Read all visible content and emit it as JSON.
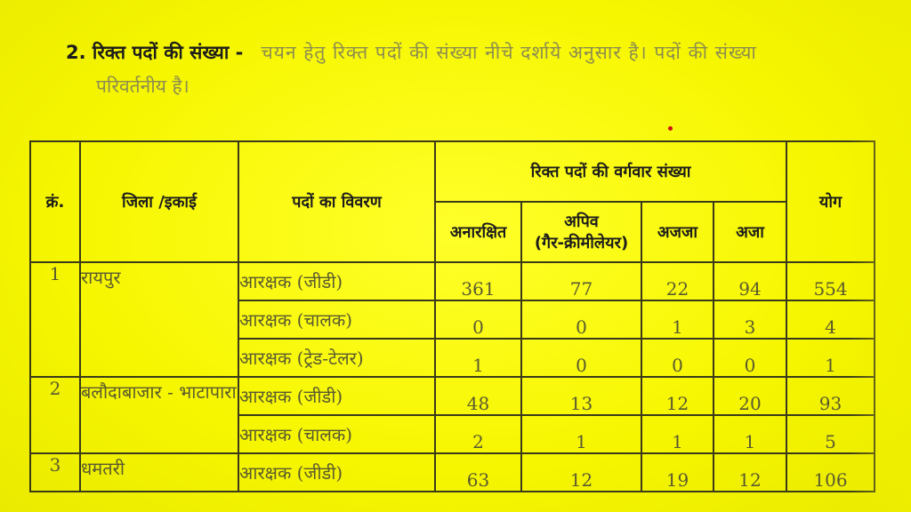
{
  "heading": {
    "number_title": "2. रिक्त पदों की संख्या -",
    "text_line1": "चयन हेतु रिक्त पदों की संख्या नीचे दर्शाये अनुसार है। पदों की संख्या",
    "text_line2": "परिवर्तनीय है।"
  },
  "table": {
    "headers": {
      "serial": "क्रं.",
      "district": "जिला /इकाई",
      "post": "पदों का विवरण",
      "category_group": "रिक्त पदों की वर्गवार संख्या",
      "unreserved": "अनारक्षित",
      "obc_line1": "अपिव",
      "obc_line2": "(गैर-क्रीमीलेयर)",
      "st": "अजजा",
      "sc": "अजा",
      "total": "योग"
    },
    "groups": [
      {
        "serial": "1",
        "district": "रायपुर",
        "rows": [
          {
            "post": "आरक्षक (जीडी)",
            "unreserved": "361",
            "obc": "77",
            "st": "22",
            "sc": "94",
            "total": "554"
          },
          {
            "post": "आरक्षक (चालक)",
            "unreserved": "0",
            "obc": "0",
            "st": "1",
            "sc": "3",
            "total": "4"
          },
          {
            "post": "आरक्षक (ट्रेड-टेलर)",
            "unreserved": "1",
            "obc": "0",
            "st": "0",
            "sc": "0",
            "total": "1"
          }
        ]
      },
      {
        "serial": "2",
        "district": "बलौदाबाजार - भाटापारा",
        "rows": [
          {
            "post": "आरक्षक (जीडी)",
            "unreserved": "48",
            "obc": "13",
            "st": "12",
            "sc": "20",
            "total": "93"
          },
          {
            "post": "आरक्षक (चालक)",
            "unreserved": "2",
            "obc": "1",
            "st": "1",
            "sc": "1",
            "total": "5"
          }
        ]
      },
      {
        "serial": "3",
        "district": "धमतरी",
        "rows": [
          {
            "post": "आरक्षक (जीडी)",
            "unreserved": "63",
            "obc": "12",
            "st": "19",
            "sc": "12",
            "total": "106"
          }
        ]
      }
    ]
  },
  "colors": {
    "background": "#f7f700",
    "border": "#3a3a1a",
    "text_dark": "#1c1c1c",
    "text_faded": "#8c8c50",
    "marker_red": "#d01010"
  }
}
